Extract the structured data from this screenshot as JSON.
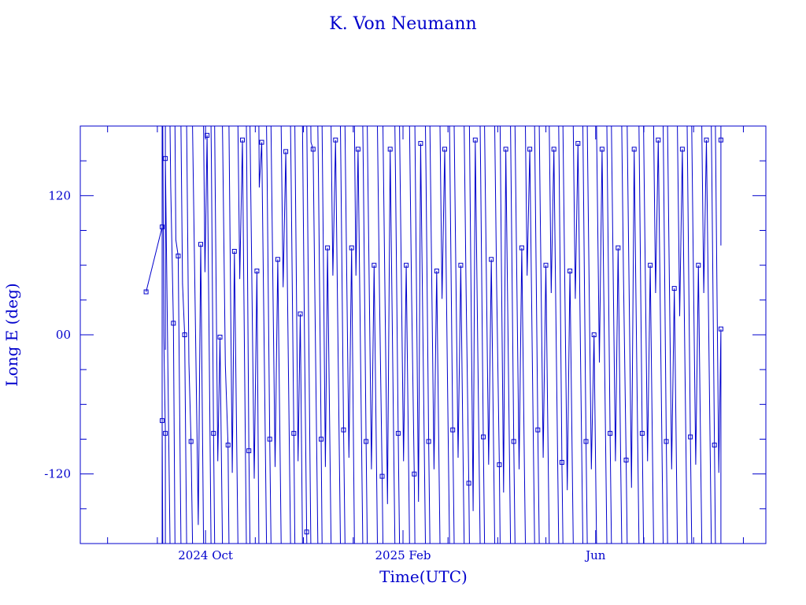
{
  "chart_data": {
    "type": "line",
    "title": "K. Von Neumann",
    "xlabel": "Time(UTC)",
    "ylabel": "Long E (deg)",
    "xlim": [
      "2024-07-15",
      "2025-09-15"
    ],
    "ylim": [
      -180,
      180
    ],
    "y_ticks": [
      {
        "value": 120,
        "label": "120"
      },
      {
        "value": 0,
        "label": "00"
      },
      {
        "value": -120,
        "label": "-120"
      }
    ],
    "x_ticks": [
      {
        "value": "2024-10-01",
        "label": "2024 Oct"
      },
      {
        "value": "2025-02-01",
        "label": "2025 Feb"
      },
      {
        "value": "2025-06-01",
        "label": "Jun"
      }
    ],
    "x_minor_ticks": [
      "2024-08-01",
      "2024-09-01",
      "2024-11-01",
      "2024-12-01",
      "2025-01-01",
      "2025-03-01",
      "2025-04-01",
      "2025-05-01",
      "2025-07-01",
      "2025-08-01",
      "2025-09-01"
    ],
    "y_minor_step": 30,
    "grid": false,
    "marker": "square",
    "color": "#0000cc",
    "longitude_wrap": true,
    "data_range": [
      "2024-08-25",
      "2025-08-18"
    ],
    "series": [
      {
        "points": [
          {
            "x": "2024-08-25",
            "y": 37
          },
          {
            "x": "2024-09-04",
            "y": 93
          },
          {
            "x": "2024-09-04",
            "y": -74
          },
          {
            "x": "2024-09-06",
            "y": -85
          },
          {
            "x": "2024-09-06",
            "y": 152
          },
          {
            "x": "2024-09-11",
            "y": 10
          },
          {
            "x": "2024-09-14",
            "y": 68
          },
          {
            "x": "2024-09-18",
            "y": 0
          },
          {
            "x": "2024-09-22",
            "y": -92
          },
          {
            "x": "2024-09-28",
            "y": 78
          },
          {
            "x": "2024-10-02",
            "y": 172
          },
          {
            "x": "2024-10-06",
            "y": -85
          },
          {
            "x": "2024-10-10",
            "y": -2
          },
          {
            "x": "2024-10-15",
            "y": -95
          },
          {
            "x": "2024-10-19",
            "y": 72
          },
          {
            "x": "2024-10-24",
            "y": 168
          },
          {
            "x": "2024-10-28",
            "y": -100
          },
          {
            "x": "2024-11-02",
            "y": 55
          },
          {
            "x": "2024-11-05",
            "y": 166
          },
          {
            "x": "2024-11-10",
            "y": -90
          },
          {
            "x": "2024-11-15",
            "y": 65
          },
          {
            "x": "2024-11-20",
            "y": 158
          },
          {
            "x": "2024-11-25",
            "y": -85
          },
          {
            "x": "2024-11-29",
            "y": 18
          },
          {
            "x": "2024-12-03",
            "y": -170
          },
          {
            "x": "2024-12-07",
            "y": 160
          },
          {
            "x": "2024-12-12",
            "y": -90
          },
          {
            "x": "2024-12-16",
            "y": 75
          },
          {
            "x": "2024-12-21",
            "y": 168
          },
          {
            "x": "2024-12-26",
            "y": -82
          },
          {
            "x": "2024-12-31",
            "y": 75
          },
          {
            "x": "2025-01-04",
            "y": 160
          },
          {
            "x": "2025-01-09",
            "y": -92
          },
          {
            "x": "2025-01-14",
            "y": 60
          },
          {
            "x": "2025-01-19",
            "y": -122
          },
          {
            "x": "2025-01-24",
            "y": 160
          },
          {
            "x": "2025-01-29",
            "y": -85
          },
          {
            "x": "2025-02-03",
            "y": 60
          },
          {
            "x": "2025-02-08",
            "y": -120
          },
          {
            "x": "2025-02-12",
            "y": 165
          },
          {
            "x": "2025-02-17",
            "y": -92
          },
          {
            "x": "2025-02-22",
            "y": 55
          },
          {
            "x": "2025-02-27",
            "y": 160
          },
          {
            "x": "2025-03-04",
            "y": -82
          },
          {
            "x": "2025-03-09",
            "y": 60
          },
          {
            "x": "2025-03-14",
            "y": -128
          },
          {
            "x": "2025-03-18",
            "y": 168
          },
          {
            "x": "2025-03-23",
            "y": -88
          },
          {
            "x": "2025-03-28",
            "y": 65
          },
          {
            "x": "2025-04-02",
            "y": -112
          },
          {
            "x": "2025-04-06",
            "y": 160
          },
          {
            "x": "2025-04-11",
            "y": -92
          },
          {
            "x": "2025-04-16",
            "y": 75
          },
          {
            "x": "2025-04-21",
            "y": 160
          },
          {
            "x": "2025-04-26",
            "y": -82
          },
          {
            "x": "2025-05-01",
            "y": 60
          },
          {
            "x": "2025-05-06",
            "y": 160
          },
          {
            "x": "2025-05-11",
            "y": -110
          },
          {
            "x": "2025-05-16",
            "y": 55
          },
          {
            "x": "2025-05-21",
            "y": 165
          },
          {
            "x": "2025-05-26",
            "y": -92
          },
          {
            "x": "2025-05-31",
            "y": 0
          },
          {
            "x": "2025-06-05",
            "y": 160
          },
          {
            "x": "2025-06-10",
            "y": -85
          },
          {
            "x": "2025-06-15",
            "y": 75
          },
          {
            "x": "2025-06-20",
            "y": -108
          },
          {
            "x": "2025-06-25",
            "y": 160
          },
          {
            "x": "2025-06-30",
            "y": -85
          },
          {
            "x": "2025-07-05",
            "y": 60
          },
          {
            "x": "2025-07-10",
            "y": 168
          },
          {
            "x": "2025-07-15",
            "y": -92
          },
          {
            "x": "2025-07-20",
            "y": 40
          },
          {
            "x": "2025-07-25",
            "y": 160
          },
          {
            "x": "2025-07-30",
            "y": -88
          },
          {
            "x": "2025-08-04",
            "y": 60
          },
          {
            "x": "2025-08-09",
            "y": 168
          },
          {
            "x": "2025-08-14",
            "y": -95
          },
          {
            "x": "2025-08-18",
            "y": 5
          },
          {
            "x": "2025-08-18",
            "y": 168
          }
        ]
      }
    ]
  }
}
